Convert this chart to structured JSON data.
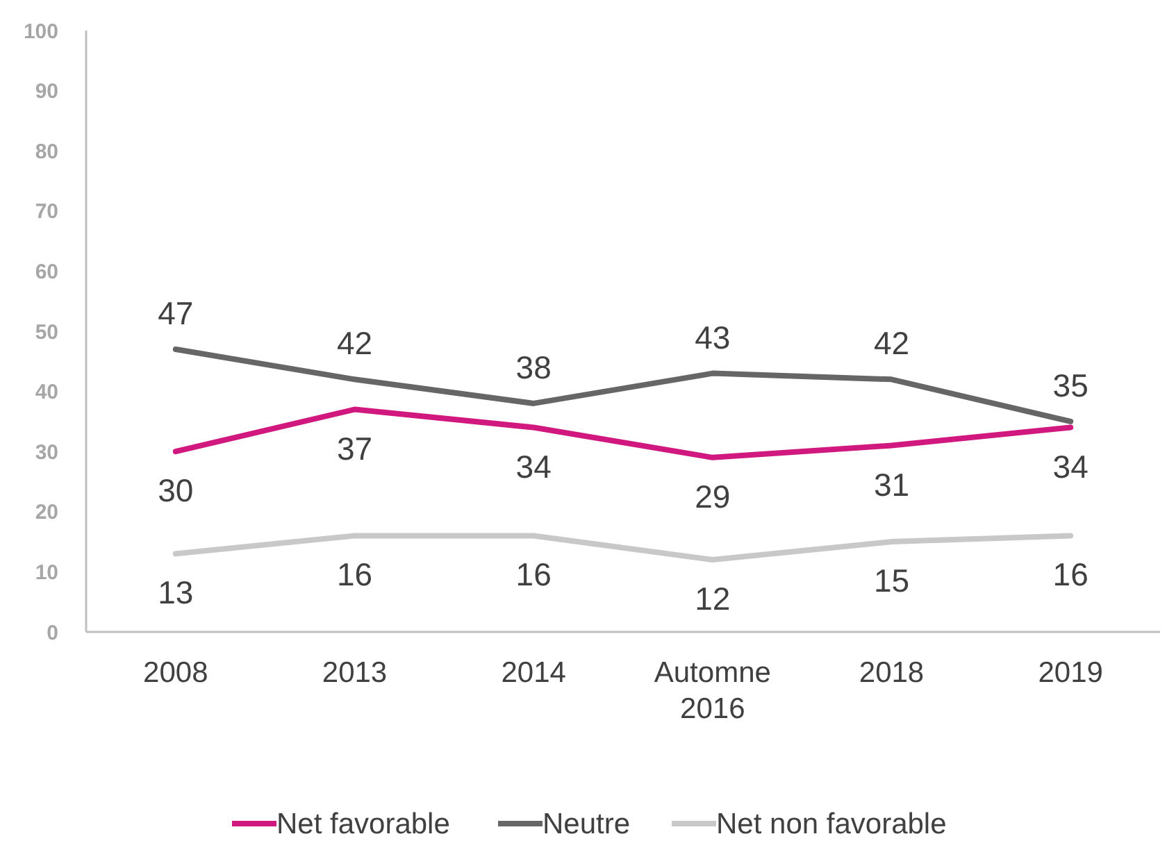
{
  "chart_data": {
    "type": "line",
    "categories": [
      "2008",
      "2013",
      "2014",
      "Automne\n2016",
      "2018",
      "2019"
    ],
    "series": [
      {
        "name": "Net favorable",
        "color": "#d1187e",
        "values": [
          30,
          37,
          34,
          29,
          31,
          34
        ]
      },
      {
        "name": "Neutre",
        "color": "#666666",
        "values": [
          47,
          42,
          38,
          43,
          42,
          35
        ]
      },
      {
        "name": "Net non favorable",
        "color": "#c8c8c8",
        "values": [
          13,
          16,
          16,
          12,
          15,
          16
        ]
      }
    ],
    "ylim": [
      0,
      100
    ],
    "yticks": [
      0,
      10,
      20,
      30,
      40,
      50,
      60,
      70,
      80,
      90,
      100
    ],
    "grid": false,
    "legend": "bottom",
    "data_labels": true,
    "marker": "none",
    "line_style": "solid"
  }
}
